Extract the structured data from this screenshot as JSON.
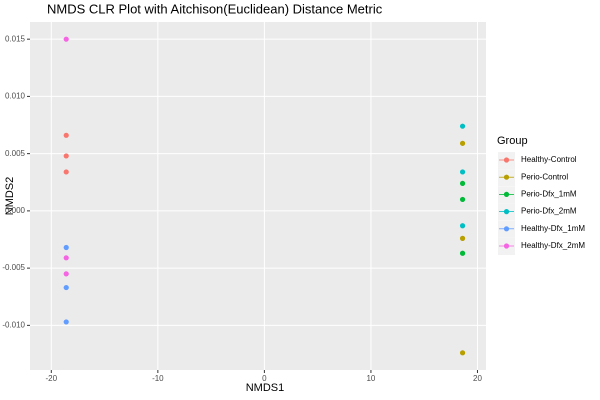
{
  "chart_data": {
    "type": "scatter",
    "title": "NMDS CLR Plot with Aitchison(Euclidean) Distance Metric",
    "x_label": "NMDS1",
    "y_label": "NMDS2",
    "legend_title": "Group",
    "series": [
      {
        "name": "Healthy-Control",
        "color": "#F8766D",
        "x": [
          -18.6,
          -18.6,
          -18.6
        ],
        "values": [
          0.0066,
          0.0048,
          0.0034
        ]
      },
      {
        "name": "Perio-Control",
        "color": "#B79F00",
        "x": [
          18.6,
          18.6,
          18.6
        ],
        "values": [
          0.0059,
          -0.0024,
          -0.0124
        ]
      },
      {
        "name": "Perio-Dfx_1mM",
        "color": "#00BA38",
        "x": [
          18.6,
          18.6,
          18.6
        ],
        "values": [
          0.0024,
          0.001,
          -0.0037
        ]
      },
      {
        "name": "Perio-Dfx_2mM",
        "color": "#00BFC4",
        "x": [
          18.6,
          18.6,
          18.6
        ],
        "values": [
          0.0074,
          0.0034,
          -0.0013
        ]
      },
      {
        "name": "Healthy-Dfx_1mM",
        "color": "#619CFF",
        "x": [
          -18.6,
          -18.6,
          -18.6
        ],
        "values": [
          -0.0032,
          -0.0067,
          -0.0097
        ]
      },
      {
        "name": "Healthy-Dfx_2mM",
        "color": "#F564E3",
        "x": [
          -18.6,
          -18.6,
          -18.6
        ],
        "values": [
          0.015,
          -0.0041,
          -0.0055
        ]
      }
    ],
    "xlim": [
      -22,
      20.8
    ],
    "ylim": [
      -0.0139,
      0.0165
    ],
    "xticks": [
      -20,
      -10,
      0,
      10,
      20
    ],
    "yticks": [
      {
        "value": -0.01,
        "label": "-0.010"
      },
      -0.005,
      {
        "value": 0,
        "label": "0.000"
      },
      0.005,
      {
        "value": 0.01,
        "label": "0.010"
      },
      0.015
    ],
    "grid": true
  }
}
